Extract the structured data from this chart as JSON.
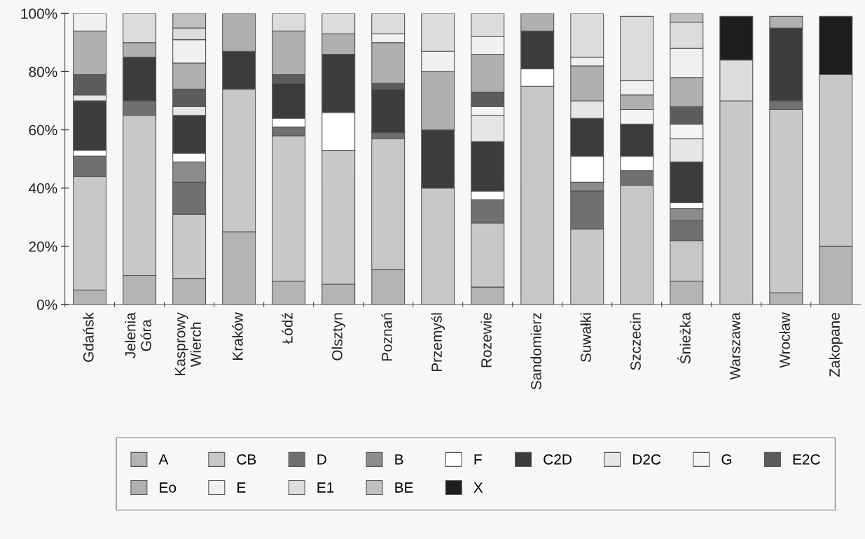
{
  "chart_data": {
    "type": "bar",
    "stacked": true,
    "categories": [
      "Gdańsk",
      "Jelenia\nGóra",
      "Kasprowy\nWierch",
      "Kraków",
      "Łódź",
      "Olsztyn",
      "Poznań",
      "Przemyśl",
      "Rozewie",
      "Sandomierz",
      "Suwałki",
      "Szczecin",
      "Śnieżka",
      "Warszawa",
      "Wrocław",
      "Zakopane"
    ],
    "series": [
      {
        "name": "A",
        "color": "#b4b4b4",
        "values": [
          5,
          10,
          9,
          25,
          8,
          7,
          12,
          0,
          6,
          0,
          0,
          0,
          8,
          0,
          4,
          20
        ]
      },
      {
        "name": "CB",
        "color": "#c8c8c8",
        "values": [
          39,
          55,
          22,
          49,
          50,
          46,
          45,
          40,
          22,
          75,
          26,
          41,
          14,
          70,
          63,
          59
        ]
      },
      {
        "name": "D",
        "color": "#707070",
        "values": [
          7,
          5,
          11,
          0,
          3,
          0,
          2,
          0,
          8,
          0,
          13,
          5,
          7,
          0,
          3,
          0
        ]
      },
      {
        "name": "B",
        "color": "#8c8c8c",
        "values": [
          0,
          0,
          7,
          0,
          0,
          0,
          0,
          0,
          0,
          0,
          3,
          0,
          4,
          0,
          0,
          0
        ]
      },
      {
        "name": "F",
        "color": "#ffffff",
        "values": [
          2,
          0,
          3,
          0,
          3,
          13,
          0,
          0,
          3,
          6,
          9,
          5,
          2,
          0,
          0,
          0
        ]
      },
      {
        "name": "C2D",
        "color": "#3c3c3c",
        "values": [
          17,
          15,
          13,
          13,
          12,
          20,
          15,
          20,
          17,
          13,
          13,
          11,
          14,
          0,
          25,
          0
        ]
      },
      {
        "name": "D2C",
        "color": "#e6e6e6",
        "values": [
          2,
          0,
          3,
          0,
          0,
          0,
          0,
          0,
          9,
          0,
          6,
          0,
          8,
          0,
          0,
          0
        ]
      },
      {
        "name": "G",
        "color": "#f4f4f4",
        "values": [
          0,
          0,
          0,
          0,
          0,
          0,
          0,
          0,
          3,
          0,
          0,
          5,
          5,
          0,
          0,
          0
        ]
      },
      {
        "name": "E2C",
        "color": "#5c5c5c",
        "values": [
          7,
          0,
          6,
          0,
          3,
          0,
          2,
          0,
          5,
          0,
          0,
          0,
          6,
          0,
          0,
          0
        ]
      },
      {
        "name": "Eo",
        "color": "#b0b0b0",
        "values": [
          15,
          5,
          9,
          13,
          15,
          7,
          14,
          20,
          13,
          6,
          12,
          5,
          10,
          0,
          4,
          0
        ]
      },
      {
        "name": "E",
        "color": "#f0f0f0",
        "values": [
          6,
          0,
          8,
          0,
          0,
          0,
          3,
          7,
          6,
          0,
          3,
          5,
          10,
          0,
          0,
          0
        ]
      },
      {
        "name": "E1",
        "color": "#dcdcdc",
        "values": [
          0,
          10,
          4,
          0,
          6,
          7,
          7,
          13,
          8,
          0,
          15,
          22,
          9,
          14,
          0,
          0
        ]
      },
      {
        "name": "BE",
        "color": "#c0c0c0",
        "values": [
          0,
          0,
          5,
          0,
          0,
          0,
          0,
          0,
          0,
          0,
          0,
          0,
          3,
          0,
          0,
          0
        ]
      },
      {
        "name": "X",
        "color": "#1e1e1e",
        "values": [
          0,
          0,
          0,
          0,
          0,
          0,
          0,
          0,
          0,
          0,
          0,
          0,
          0,
          15,
          0,
          20
        ]
      }
    ],
    "ylim": [
      0,
      100
    ],
    "yticks": [
      {
        "value": 0,
        "label": "0%"
      },
      {
        "value": 20,
        "label": "20%"
      },
      {
        "value": 40,
        "label": "40%"
      },
      {
        "value": 60,
        "label": "60%"
      },
      {
        "value": 80,
        "label": "80%"
      },
      {
        "value": 100,
        "label": "100%"
      }
    ],
    "grid": false,
    "legend": "bottom"
  }
}
